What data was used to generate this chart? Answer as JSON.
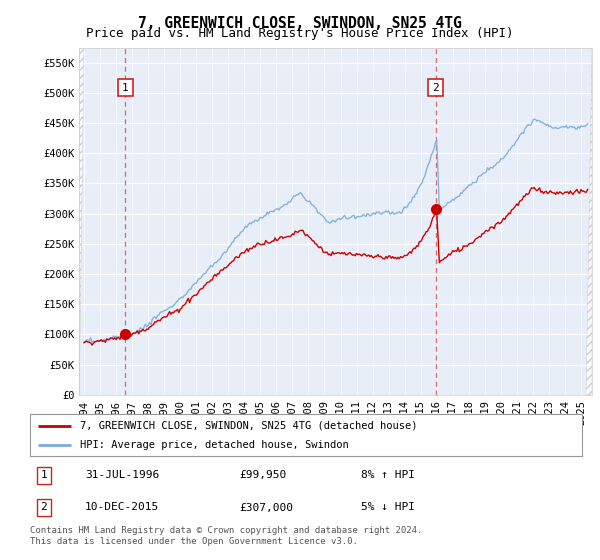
{
  "title": "7, GREENWICH CLOSE, SWINDON, SN25 4TG",
  "subtitle": "Price paid vs. HM Land Registry's House Price Index (HPI)",
  "ylabel_ticks": [
    "£0",
    "£50K",
    "£100K",
    "£150K",
    "£200K",
    "£250K",
    "£300K",
    "£350K",
    "£400K",
    "£450K",
    "£500K",
    "£550K"
  ],
  "ytick_values": [
    0,
    50000,
    100000,
    150000,
    200000,
    250000,
    300000,
    350000,
    400000,
    450000,
    500000,
    550000
  ],
  "ylim": [
    0,
    575000
  ],
  "xlim_start": 1993.7,
  "xlim_end": 2025.7,
  "marker1_x": 1996.58,
  "marker1_y": 99950,
  "marker2_x": 2015.94,
  "marker2_y": 307000,
  "vline1_x": 1996.58,
  "vline2_x": 2015.94,
  "legend_line1": "7, GREENWICH CLOSE, SWINDON, SN25 4TG (detached house)",
  "legend_line2": "HPI: Average price, detached house, Swindon",
  "line1_color": "#cc0000",
  "line2_color": "#7aaddb",
  "marker_color": "#cc0000",
  "vline_color": "#dd6666",
  "annotation1_label": "1",
  "annotation2_label": "2",
  "table_row1": [
    "1",
    "31-JUL-1996",
    "£99,950",
    "8% ↑ HPI"
  ],
  "table_row2": [
    "2",
    "10-DEC-2015",
    "£307,000",
    "5% ↓ HPI"
  ],
  "footer": "Contains HM Land Registry data © Crown copyright and database right 2024.\nThis data is licensed under the Open Government Licence v3.0.",
  "bg_color": "#ffffff",
  "plot_bg_color": "#e8eef8",
  "grid_color": "#ffffff",
  "title_fontsize": 10.5,
  "subtitle_fontsize": 9,
  "tick_fontsize": 7.5
}
